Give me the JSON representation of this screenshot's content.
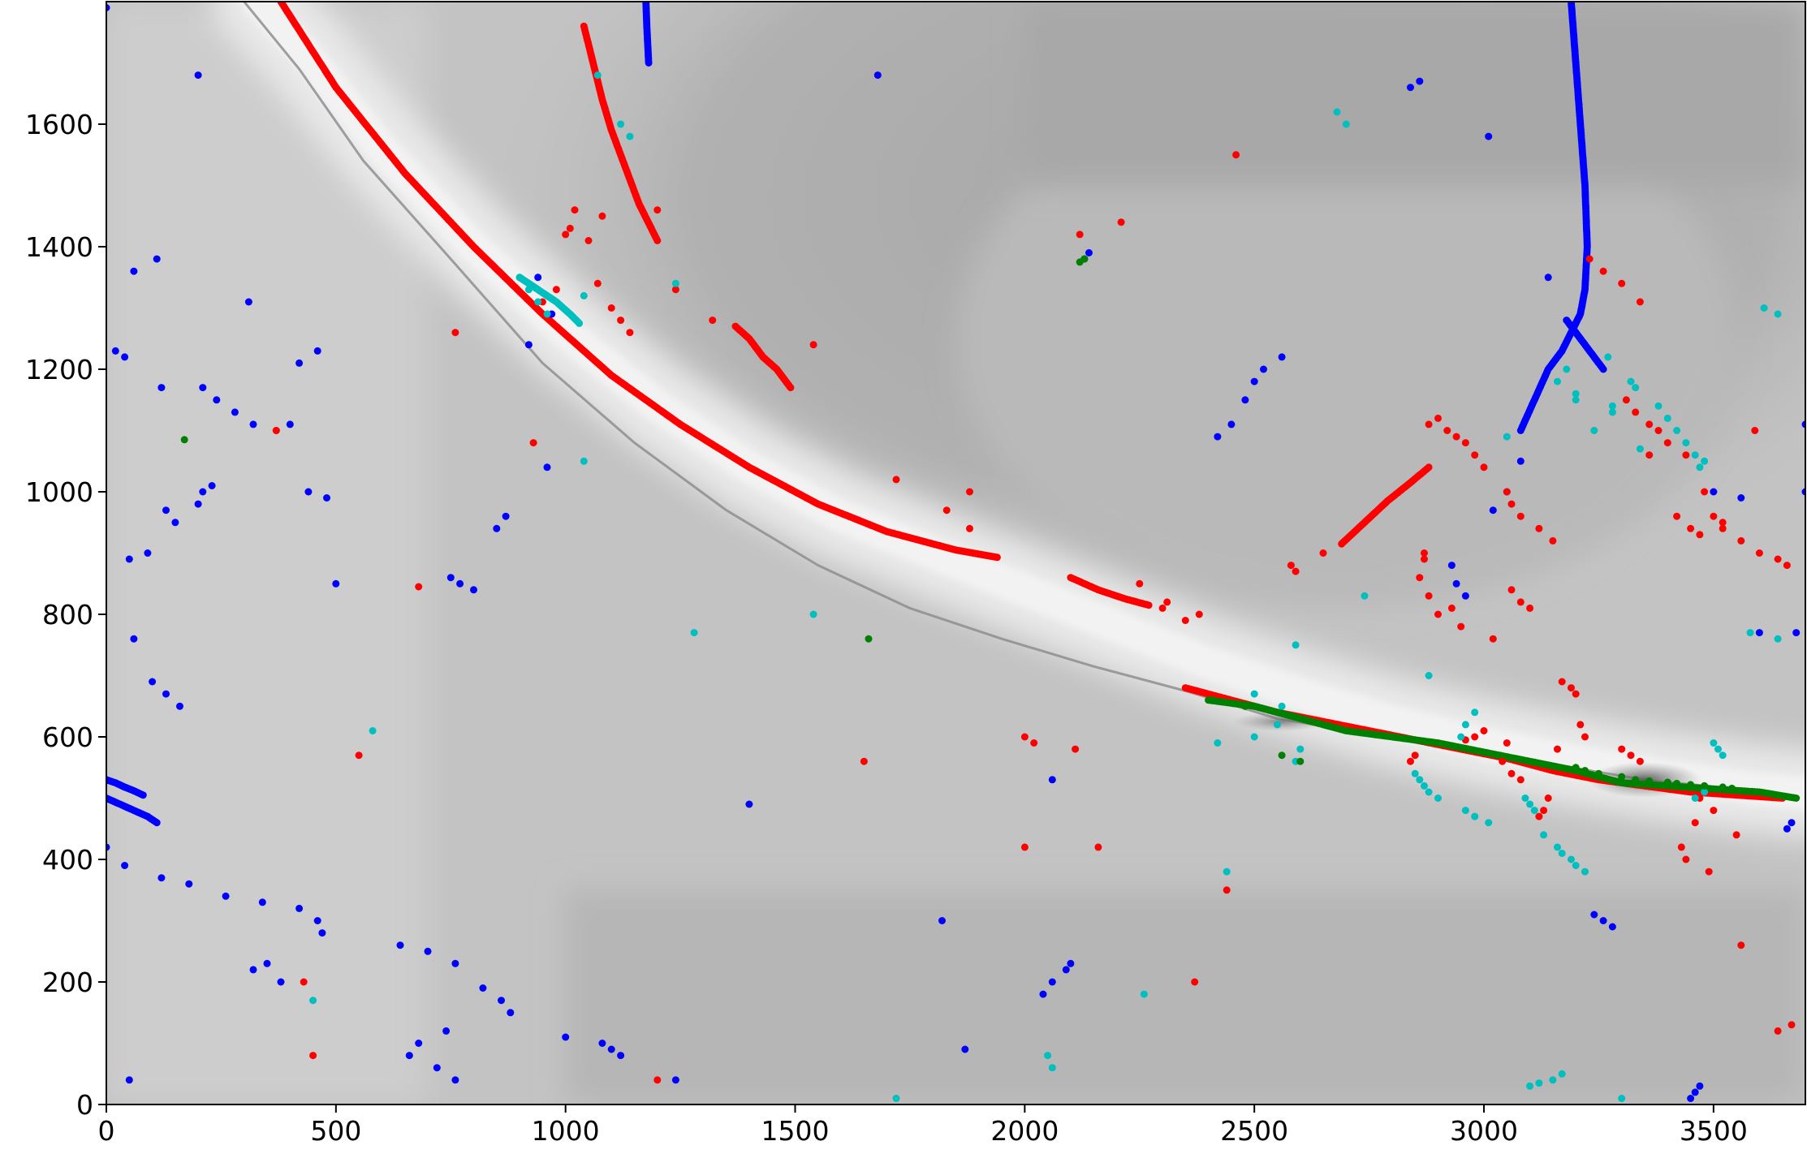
{
  "chart_data": {
    "type": "scatter",
    "title": "",
    "xlabel": "",
    "ylabel": "",
    "xlim": [
      0,
      3700
    ],
    "ylim": [
      0,
      1800
    ],
    "x_ticks": [
      0,
      500,
      1000,
      1500,
      2000,
      2500,
      3000,
      3500
    ],
    "y_ticks": [
      0,
      200,
      400,
      600,
      800,
      1000,
      1200,
      1400,
      1600
    ],
    "x_tick_labels": [
      "0",
      "500",
      "1000",
      "1500",
      "2000",
      "2500",
      "3000",
      "3500"
    ],
    "y_tick_labels": [
      "0",
      "200",
      "400",
      "600",
      "800",
      "1000",
      "1200",
      "1400",
      "1600"
    ],
    "background": "grayscale field image with a bright band (ridge) running from top-left to lower-right and a large dark circular lobe in the upper right",
    "grid": false,
    "legend": "none",
    "colors": {
      "red": "#ff0000",
      "blue": "#0000ff",
      "cyan": "#00bfbf",
      "green": "#008000"
    },
    "curves": [
      {
        "color": "red",
        "kind": "points",
        "x": [
          380,
          500,
          650,
          800,
          950,
          1100,
          1250,
          1400,
          1550,
          1700,
          1850,
          1940
        ],
        "y": [
          1800,
          1660,
          1520,
          1400,
          1290,
          1190,
          1110,
          1040,
          980,
          935,
          905,
          893
        ]
      },
      {
        "color": "red",
        "kind": "points",
        "x": [
          1040,
          1060,
          1080,
          1100,
          1120,
          1140,
          1160,
          1180,
          1200
        ],
        "y": [
          1760,
          1700,
          1640,
          1590,
          1550,
          1510,
          1470,
          1440,
          1410
        ]
      },
      {
        "color": "red",
        "kind": "points",
        "x": [
          2690,
          2740,
          2790,
          2840,
          2880
        ],
        "y": [
          915,
          950,
          985,
          1015,
          1040
        ]
      },
      {
        "color": "red",
        "kind": "points",
        "x": [
          1370,
          1400,
          1430,
          1460,
          1490
        ],
        "y": [
          1270,
          1250,
          1220,
          1200,
          1170
        ]
      },
      {
        "color": "red",
        "kind": "points",
        "x": [
          2100,
          2160,
          2220,
          2270
        ],
        "y": [
          860,
          840,
          825,
          815
        ]
      },
      {
        "color": "red",
        "kind": "points",
        "x": [
          2350,
          2450,
          2550,
          2650,
          2750,
          2850,
          2950,
          3050,
          3150,
          3250,
          3350,
          3450,
          3550,
          3650
        ],
        "y": [
          680,
          660,
          640,
          625,
          610,
          595,
          580,
          565,
          545,
          530,
          520,
          510,
          505,
          500
        ]
      },
      {
        "color": "blue",
        "kind": "points",
        "x": [
          3190,
          3200,
          3210,
          3220,
          3225,
          3220,
          3210,
          3190,
          3170,
          3140,
          3110,
          3080
        ],
        "y": [
          1800,
          1700,
          1600,
          1500,
          1400,
          1330,
          1290,
          1260,
          1230,
          1200,
          1150,
          1100
        ]
      },
      {
        "color": "blue",
        "kind": "points",
        "x": [
          3180,
          3200,
          3220,
          3240,
          3260
        ],
        "y": [
          1280,
          1260,
          1240,
          1220,
          1200
        ]
      },
      {
        "color": "blue",
        "kind": "points",
        "x": [
          1175,
          1177,
          1179,
          1181
        ],
        "y": [
          1800,
          1760,
          1730,
          1700
        ]
      },
      {
        "color": "blue",
        "kind": "points",
        "x": [
          0,
          20,
          40,
          60,
          80
        ],
        "y": [
          530,
          525,
          518,
          512,
          505
        ]
      },
      {
        "color": "blue",
        "kind": "points",
        "x": [
          0,
          30,
          60,
          90,
          110
        ],
        "y": [
          500,
          490,
          480,
          470,
          460
        ]
      },
      {
        "color": "green",
        "kind": "points",
        "x": [
          2400,
          2500,
          2600,
          2700,
          2800,
          2900,
          3000,
          3100,
          3200,
          3300,
          3400,
          3500,
          3600,
          3680
        ],
        "y": [
          660,
          650,
          630,
          610,
          600,
          590,
          575,
          560,
          545,
          525,
          520,
          515,
          510,
          500
        ]
      },
      {
        "color": "cyan",
        "kind": "points",
        "x": [
          900,
          940,
          980,
          1010,
          1030
        ],
        "y": [
          1350,
          1330,
          1310,
          1290,
          1275
        ]
      }
    ],
    "scatter": [
      {
        "color": "blue",
        "x": [
          0,
          200,
          60,
          110,
          20,
          40,
          310,
          460,
          420,
          120,
          210,
          240,
          280,
          320,
          230,
          130,
          50,
          90,
          150,
          200,
          210,
          100,
          130,
          160,
          60,
          400,
          440,
          480,
          0,
          40,
          120,
          180,
          260,
          340,
          420,
          460,
          470,
          350,
          320,
          380,
          640,
          700,
          760,
          820,
          860,
          880,
          740,
          680,
          660,
          720,
          760,
          1000,
          1080,
          1100,
          1120,
          1240,
          1400,
          1820,
          2060,
          2100,
          1870,
          2040,
          2060,
          2090,
          2420,
          2450,
          2480,
          2500,
          2520,
          2560,
          2930,
          2940,
          2960,
          3020,
          3050,
          3080,
          3140,
          3240,
          3260,
          3280,
          3450,
          3460,
          3470,
          3660,
          3670,
          3600,
          3680,
          3560,
          3700,
          3500,
          3700,
          1680,
          2840,
          2860,
          3010,
          2140,
          2130,
          750,
          770,
          800,
          850,
          870,
          500,
          50,
          920,
          960,
          940,
          970
        ],
        "y": [
          1790,
          1680,
          1360,
          1380,
          1230,
          1220,
          1310,
          1230,
          1210,
          1170,
          1170,
          1150,
          1130,
          1110,
          1010,
          970,
          890,
          900,
          950,
          980,
          1000,
          690,
          670,
          650,
          760,
          1110,
          1000,
          990,
          420,
          390,
          370,
          360,
          340,
          330,
          320,
          300,
          280,
          230,
          220,
          200,
          260,
          250,
          230,
          190,
          170,
          150,
          120,
          100,
          80,
          60,
          40,
          110,
          100,
          90,
          80,
          40,
          490,
          300,
          530,
          230,
          90,
          180,
          200,
          220,
          1090,
          1110,
          1150,
          1180,
          1200,
          1220,
          880,
          850,
          830,
          970,
          1000,
          1050,
          1350,
          310,
          300,
          290,
          10,
          20,
          30,
          450,
          460,
          770,
          770,
          990,
          1000,
          1000,
          1110,
          1680,
          1660,
          1670,
          1580,
          1390,
          1380,
          860,
          850,
          840,
          940,
          960,
          850,
          40,
          1240,
          1040,
          1350,
          1290
        ]
      },
      {
        "color": "red",
        "x": [
          370,
          550,
          760,
          680,
          1050,
          1070,
          1100,
          1120,
          1140,
          1080,
          1020,
          1010,
          1000,
          2460,
          2210,
          2120,
          2000,
          1650,
          1720,
          1830,
          1880,
          2250,
          1200,
          2370,
          2590,
          2580,
          2650,
          2880,
          2900,
          2920,
          2940,
          2960,
          2980,
          3000,
          3050,
          3060,
          3080,
          3120,
          3150,
          3230,
          3260,
          3300,
          3340,
          3380,
          3400,
          3440,
          3480,
          3500,
          3520,
          3560,
          3600,
          3640,
          3660,
          3480,
          3470,
          3500,
          3460,
          3550,
          3430,
          3440,
          3490,
          3170,
          3190,
          3200,
          3210,
          3220,
          3160,
          2900,
          2950,
          2880,
          2860,
          2870,
          2870,
          2930,
          3020,
          3060,
          3080,
          3100,
          3340,
          3300,
          3320,
          3520,
          3560,
          3640,
          3670,
          3590,
          3310,
          3330,
          3360,
          3360,
          2440,
          3120,
          3130,
          3140,
          2840,
          2160,
          1200,
          450,
          430,
          930,
          1240,
          1320,
          1540,
          370,
          980,
          950,
          1880,
          2350,
          2380,
          2300,
          2310,
          2850,
          3050,
          2960,
          2980,
          3000,
          3040,
          3060,
          3080,
          3420,
          3450,
          3470,
          2000,
          2020,
          2110
        ],
        "y": [
          1100,
          570,
          1260,
          845,
          1410,
          1340,
          1300,
          1280,
          1260,
          1450,
          1460,
          1430,
          1420,
          1550,
          1440,
          1420,
          420,
          560,
          1020,
          970,
          940,
          850,
          1460,
          200,
          870,
          880,
          900,
          1110,
          1120,
          1100,
          1090,
          1080,
          1060,
          1040,
          1000,
          980,
          960,
          940,
          920,
          1380,
          1360,
          1340,
          1310,
          1100,
          1080,
          1060,
          1000,
          960,
          940,
          920,
          900,
          890,
          880,
          520,
          500,
          480,
          460,
          440,
          420,
          400,
          380,
          690,
          680,
          670,
          620,
          600,
          580,
          800,
          780,
          830,
          860,
          890,
          900,
          810,
          760,
          840,
          820,
          810,
          560,
          580,
          570,
          950,
          260,
          120,
          130,
          1100,
          1150,
          1130,
          1110,
          1060,
          350,
          470,
          480,
          500,
          560,
          420,
          40,
          80,
          200,
          1080,
          1330,
          1280,
          1240,
          1100,
          1330,
          1310,
          1000,
          790,
          800,
          810,
          820,
          570,
          590,
          595,
          600,
          610,
          560,
          540,
          530,
          960,
          940,
          930,
          600,
          590,
          580
        ]
      },
      {
        "color": "cyan",
        "x": [
          900,
          920,
          940,
          960,
          1040,
          1070,
          1120,
          1140,
          1240,
          1040,
          1540,
          1280,
          580,
          450,
          2680,
          2700,
          2590,
          2500,
          2560,
          2420,
          2440,
          2850,
          2860,
          2870,
          2880,
          2900,
          2960,
          2980,
          3010,
          3090,
          3100,
          3110,
          3130,
          3160,
          3170,
          3190,
          3200,
          3220,
          3270,
          3320,
          3330,
          3380,
          3400,
          3420,
          3440,
          3460,
          3470,
          3500,
          3510,
          3520,
          3610,
          3640,
          3480,
          3580,
          3640,
          3340,
          3280,
          3160,
          3180,
          3200,
          3240,
          2740,
          2260,
          2050,
          2060,
          1720,
          3300,
          3100,
          3120,
          3150,
          3170,
          3050,
          2950,
          2960,
          2980,
          3280,
          3200,
          2590,
          2600,
          2500,
          2550,
          3460,
          3480,
          2880
        ],
        "y": [
          1350,
          1330,
          1310,
          1290,
          1050,
          1680,
          1600,
          1580,
          1340,
          1320,
          800,
          770,
          610,
          170,
          1620,
          1600,
          750,
          670,
          650,
          590,
          380,
          540,
          530,
          520,
          510,
          500,
          480,
          470,
          460,
          500,
          490,
          480,
          440,
          420,
          410,
          400,
          390,
          380,
          1220,
          1180,
          1170,
          1140,
          1120,
          1100,
          1080,
          1060,
          1040,
          590,
          580,
          570,
          1300,
          1290,
          1050,
          770,
          760,
          1070,
          1140,
          1180,
          1200,
          1150,
          1100,
          830,
          180,
          80,
          60,
          10,
          10,
          30,
          35,
          40,
          50,
          1090,
          600,
          620,
          640,
          1130,
          1160,
          560,
          580,
          600,
          620,
          500,
          510,
          700
        ]
      },
      {
        "color": "green",
        "x": [
          170,
          2120,
          1660,
          2130,
          2410,
          2480,
          2560,
          2600,
          3200,
          3220,
          3250,
          3300,
          3330,
          3360,
          3400,
          3420,
          3450,
          3480,
          3520,
          3540
        ],
        "y": [
          1085,
          1375,
          760,
          1380,
          660,
          650,
          570,
          560,
          550,
          545,
          540,
          535,
          530,
          528,
          526,
          524,
          522,
          520,
          518,
          516
        ]
      }
    ]
  }
}
